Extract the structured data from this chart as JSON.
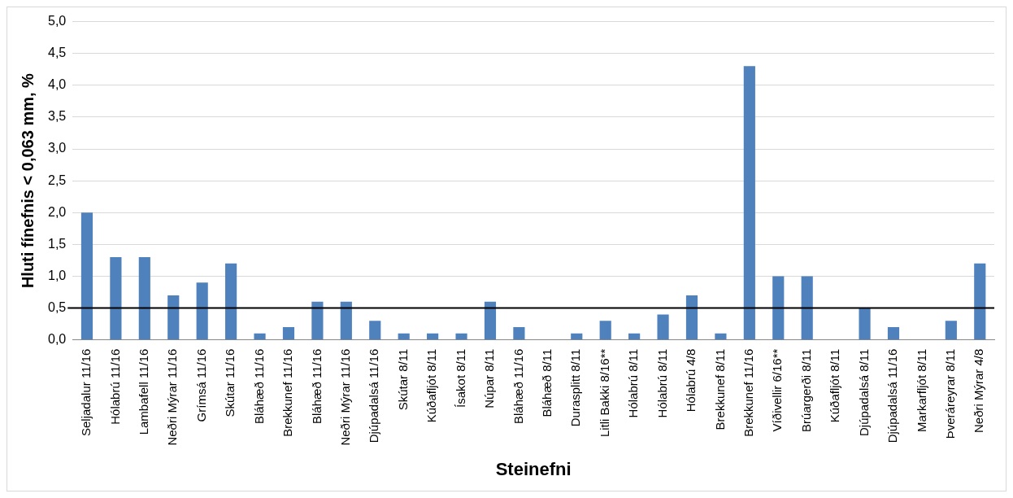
{
  "chart_data": {
    "type": "bar",
    "xlabel": "Steinefni",
    "ylabel": "Hluti fínefnis < 0,063 mm, %",
    "categories": [
      "Seljadalur 11/16",
      "Hólabrú 11/16",
      "Lambafell 11/16",
      "Neðri Mýrar 11/16",
      "Grímsá 11/16",
      "Skútar 11/16",
      "Bláhæð 11/16",
      "Brekkunef 11/16",
      "Bláhæð 11/16",
      "Neðri Mýrar 11/16",
      "Djúpadalsá 11/16",
      "Skútar 8/11",
      "Kúðafljót 8/11",
      "Ísakot 8/11",
      "Núpar 8/11",
      "Bláhæð 11/16",
      "Bláhæð 8/11",
      "Durasplitt 8/11",
      "Litli Bakki 8/16**",
      "Hólabrú 8/11",
      "Hólabrú 8/11",
      "Hólabrú 4/8",
      "Brekkunef 8/11",
      "Brekkunef 11/16",
      "Víðivellir 6/16**",
      "Brúargerði 8/11",
      "Kúðafljót 8/11",
      "Djúpadalsá 8/11",
      "Djúpadalsá 11/16",
      "Markarfljót 8/11",
      "Þveráreyrar 8/11",
      "Neðri Mýrar 4/8"
    ],
    "values": [
      2.0,
      1.3,
      1.3,
      0.7,
      0.9,
      1.2,
      0.1,
      0.2,
      0.6,
      0.6,
      0.3,
      0.1,
      0.1,
      0.1,
      0.6,
      0.2,
      0,
      0.1,
      0.3,
      0.1,
      0.4,
      0.7,
      0.1,
      4.3,
      1.0,
      1.0,
      0,
      0.5,
      0.2,
      0,
      0.3,
      1.2
    ],
    "color": "#4f81bd",
    "ylim": [
      0,
      5
    ],
    "yticks": [
      {
        "value": 0,
        "label": "0,0"
      },
      {
        "value": 0.5,
        "label": "0,5"
      },
      {
        "value": 1,
        "label": "1,0"
      },
      {
        "value": 1.5,
        "label": "1,5"
      },
      {
        "value": 2,
        "label": "2,0"
      },
      {
        "value": 2.5,
        "label": "2,5"
      },
      {
        "value": 3,
        "label": "3,0"
      },
      {
        "value": 3.5,
        "label": "3,5"
      },
      {
        "value": 4,
        "label": "4,0"
      },
      {
        "value": 4.5,
        "label": "4,5"
      },
      {
        "value": 5,
        "label": "5,0"
      }
    ],
    "grid": "y",
    "legend": false,
    "ref_lines": [
      {
        "axis": "y",
        "value": 0.5,
        "color": "#000000"
      }
    ]
  }
}
